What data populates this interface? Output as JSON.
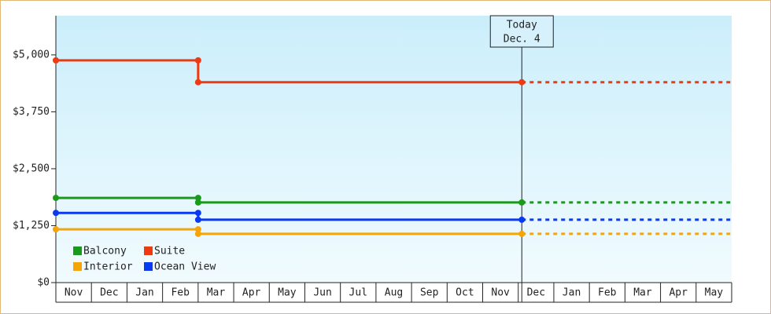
{
  "chart_data": {
    "type": "line",
    "categories": [
      "Nov",
      "Dec",
      "Jan",
      "Feb",
      "Mar",
      "Apr",
      "May",
      "Jun",
      "Jul",
      "Aug",
      "Sep",
      "Oct",
      "Nov",
      "Dec",
      "Jan",
      "Feb",
      "Mar",
      "Apr",
      "May"
    ],
    "x": [
      0,
      4,
      4,
      13.1
    ],
    "xlim": [
      0,
      19
    ],
    "series": [
      {
        "name": "Balcony",
        "color": "#1a9a1a",
        "values": [
          1860,
          1860,
          1760,
          1760
        ]
      },
      {
        "name": "Suite",
        "color": "#ee3a10",
        "values": [
          4880,
          4880,
          4400,
          4400
        ]
      },
      {
        "name": "Interior",
        "color": "#f5a40a",
        "values": [
          1170,
          1170,
          1070,
          1070
        ]
      },
      {
        "name": "Ocean View",
        "color": "#0a3af0",
        "values": [
          1530,
          1530,
          1380,
          1380
        ]
      }
    ],
    "ylim": [
      0,
      5860
    ],
    "yticks": [
      {
        "value": 0,
        "label": "$0"
      },
      {
        "value": 1250,
        "label": "$1,250"
      },
      {
        "value": 2500,
        "label": "$2,500"
      },
      {
        "value": 3750,
        "label": "$3,750"
      },
      {
        "value": 5000,
        "label": "$5,000"
      }
    ],
    "annotation": {
      "x": 13.1,
      "lines": [
        "Today",
        "Dec. 4"
      ]
    },
    "projection": true
  }
}
